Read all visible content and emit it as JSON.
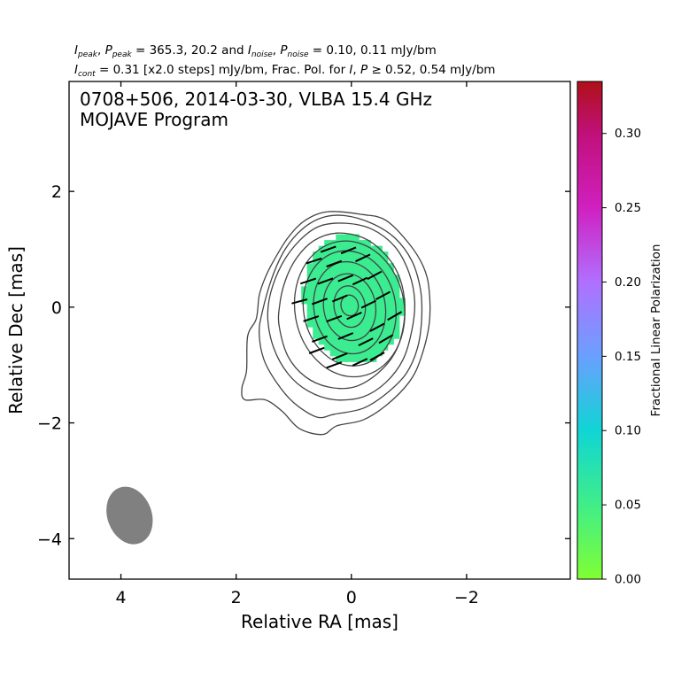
{
  "header": {
    "line1": {
      "i_peak_sym": "I",
      "i_peak_sub": "peak",
      "p_peak_sym": "P",
      "p_peak_sub": "peak",
      "peak_values": " = 365.3, 20.2 and ",
      "i_noise_sym": "I",
      "i_noise_sub": "noise",
      "p_noise_sym": "P",
      "p_noise_sub": "noise",
      "noise_values": " = 0.10, 0.11 mJy/bm"
    },
    "line2": {
      "i_cont_sym": "I",
      "i_cont_sub": "cont",
      "cont_text": " = 0.31 [x2.0 steps] mJy/bm, Frac. Pol. for ",
      "i_sym": "I",
      "p_sym": "P",
      "thresh_text": " ≥ 0.52, 0.54 mJy/bm"
    }
  },
  "chart_data": {
    "type": "heatmap",
    "title": "0708+506, 2014-03-30, VLBA 15.4 GHz",
    "subtitle": "MOJAVE Program",
    "xlabel": "Relative RA [mas]",
    "ylabel": "Relative Dec [mas]",
    "xlim": [
      4.9,
      -3.8
    ],
    "ylim": [
      -4.7,
      3.9
    ],
    "xticks": [
      4,
      2,
      0,
      -2
    ],
    "xtick_labels": [
      "4",
      "2",
      "0",
      "−2"
    ],
    "yticks": [
      2,
      0,
      -2,
      -4
    ],
    "ytick_labels": [
      "2",
      "0",
      "−2",
      "−4"
    ],
    "grid": false,
    "colorbar": {
      "label": "Fractional Linear Polarization",
      "range": [
        0.0,
        0.335
      ],
      "ticks": [
        0.0,
        0.05,
        0.1,
        0.15,
        0.2,
        0.25,
        0.3
      ],
      "tick_labels": [
        "0.00",
        "0.05",
        "0.10",
        "0.15",
        "0.20",
        "0.25",
        "0.30"
      ],
      "stops": [
        {
          "v": 0.0,
          "color": "#80ff33"
        },
        {
          "v": 0.05,
          "color": "#40ee88"
        },
        {
          "v": 0.1,
          "color": "#10d5d5"
        },
        {
          "v": 0.15,
          "color": "#6aa0ff"
        },
        {
          "v": 0.2,
          "color": "#b070ff"
        },
        {
          "v": 0.25,
          "color": "#d020c0"
        },
        {
          "v": 0.3,
          "color": "#c0107a"
        },
        {
          "v": 0.335,
          "color": "#b01018"
        }
      ]
    },
    "fractional_polarization_level": 0.055,
    "contour_color": "#444444",
    "vector_color": "#000000",
    "contours": [
      {
        "level": 1,
        "points": [
          [
            1.6,
            0.2
          ],
          [
            1.65,
            -0.2
          ],
          [
            1.8,
            -0.5
          ],
          [
            1.82,
            -1.1
          ],
          [
            1.9,
            -1.4
          ],
          [
            1.85,
            -1.6
          ],
          [
            1.5,
            -1.6
          ],
          [
            1.2,
            -1.8
          ],
          [
            0.9,
            -2.1
          ],
          [
            0.5,
            -2.2
          ],
          [
            0.25,
            -2.05
          ],
          [
            -0.2,
            -1.95
          ],
          [
            -0.6,
            -1.7
          ],
          [
            -1.0,
            -1.3
          ],
          [
            -1.2,
            -0.9
          ],
          [
            -1.35,
            -0.3
          ],
          [
            -1.35,
            0.3
          ],
          [
            -1.25,
            0.7
          ],
          [
            -1.0,
            1.1
          ],
          [
            -0.6,
            1.5
          ],
          [
            -0.2,
            1.6
          ],
          [
            0.4,
            1.65
          ],
          [
            0.8,
            1.5
          ],
          [
            1.1,
            1.2
          ],
          [
            1.35,
            0.8
          ],
          [
            1.5,
            0.5
          ]
        ]
      },
      {
        "level": 2,
        "points": [
          [
            1.55,
            -0.1
          ],
          [
            1.6,
            -0.45
          ],
          [
            1.52,
            -0.9
          ],
          [
            1.3,
            -1.3
          ],
          [
            1.0,
            -1.65
          ],
          [
            0.6,
            -1.9
          ],
          [
            0.3,
            -1.85
          ],
          [
            -0.2,
            -1.75
          ],
          [
            -0.6,
            -1.5
          ],
          [
            -0.95,
            -1.15
          ],
          [
            -1.15,
            -0.7
          ],
          [
            -1.22,
            -0.2
          ],
          [
            -1.2,
            0.3
          ],
          [
            -1.05,
            0.8
          ],
          [
            -0.75,
            1.2
          ],
          [
            -0.35,
            1.45
          ],
          [
            0.1,
            1.58
          ],
          [
            0.5,
            1.55
          ],
          [
            0.85,
            1.35
          ],
          [
            1.15,
            1.0
          ],
          [
            1.38,
            0.5
          ]
        ]
      },
      {
        "level": 4,
        "points": [
          [
            1.45,
            -0.2
          ],
          [
            1.35,
            -0.7
          ],
          [
            1.1,
            -1.15
          ],
          [
            0.75,
            -1.45
          ],
          [
            0.3,
            -1.6
          ],
          [
            -0.2,
            -1.55
          ],
          [
            -0.6,
            -1.3
          ],
          [
            -0.9,
            -0.9
          ],
          [
            -1.05,
            -0.4
          ],
          [
            -1.1,
            0.1
          ],
          [
            -1.0,
            0.6
          ],
          [
            -0.75,
            1.05
          ],
          [
            -0.35,
            1.35
          ],
          [
            0.1,
            1.45
          ],
          [
            0.55,
            1.4
          ],
          [
            0.9,
            1.15
          ],
          [
            1.2,
            0.75
          ],
          [
            1.4,
            0.25
          ]
        ]
      },
      {
        "level": 8,
        "points": [
          [
            1.25,
            -0.35
          ],
          [
            1.1,
            -0.85
          ],
          [
            0.8,
            -1.2
          ],
          [
            0.4,
            -1.38
          ],
          [
            -0.05,
            -1.38
          ],
          [
            -0.45,
            -1.15
          ],
          [
            -0.75,
            -0.8
          ],
          [
            -0.9,
            -0.35
          ],
          [
            -0.92,
            0.15
          ],
          [
            -0.8,
            0.6
          ],
          [
            -0.55,
            0.95
          ],
          [
            -0.2,
            1.2
          ],
          [
            0.25,
            1.28
          ],
          [
            0.65,
            1.15
          ],
          [
            0.95,
            0.85
          ],
          [
            1.15,
            0.45
          ],
          [
            1.25,
            0.0
          ]
        ]
      },
      {
        "level": 16,
        "p": {
          "cx": 0.03,
          "cy": -0.03,
          "rx": 0.95,
          "ry": 1.18,
          "rot": -10
        }
      },
      {
        "level": 32,
        "p": {
          "cx": 0.03,
          "cy": -0.02,
          "rx": 0.8,
          "ry": 1.0,
          "rot": -10
        }
      },
      {
        "level": 64,
        "p": {
          "cx": 0.03,
          "cy": -0.01,
          "rx": 0.62,
          "ry": 0.8,
          "rot": -10
        }
      },
      {
        "level": 128,
        "p": {
          "cx": 0.03,
          "cy": 0.0,
          "rx": 0.45,
          "ry": 0.58,
          "rot": -10
        }
      },
      {
        "level": 256,
        "p": {
          "cx": 0.03,
          "cy": 0.01,
          "rx": 0.27,
          "ry": 0.36,
          "rot": -10
        }
      },
      {
        "level": 512,
        "p": {
          "cx": 0.03,
          "cy": 0.03,
          "rx": 0.15,
          "ry": 0.18,
          "rot": -10
        }
      }
    ],
    "polarized_region": {
      "cx": 0.02,
      "cy": 0.08,
      "rx": 0.85,
      "ry": 1.12,
      "rot": -10
    },
    "evpa_vectors": [
      {
        "x": 0.4,
        "y": 1.0,
        "ang": -20
      },
      {
        "x": 0.05,
        "y": 0.98,
        "ang": -22
      },
      {
        "x": -0.2,
        "y": 0.85,
        "ang": -25
      },
      {
        "x": 0.65,
        "y": 0.8,
        "ang": -18
      },
      {
        "x": 0.3,
        "y": 0.75,
        "ang": -20
      },
      {
        "x": -0.4,
        "y": 0.55,
        "ang": -28
      },
      {
        "x": 0.75,
        "y": 0.45,
        "ang": -18
      },
      {
        "x": 0.45,
        "y": 0.45,
        "ang": -20
      },
      {
        "x": 0.1,
        "y": 0.5,
        "ang": -22
      },
      {
        "x": -0.15,
        "y": 0.45,
        "ang": -25
      },
      {
        "x": -0.55,
        "y": 0.2,
        "ang": -28
      },
      {
        "x": 0.9,
        "y": 0.1,
        "ang": -15
      },
      {
        "x": 0.55,
        "y": 0.1,
        "ang": -20
      },
      {
        "x": 0.2,
        "y": 0.15,
        "ang": -22
      },
      {
        "x": -0.3,
        "y": 0.05,
        "ang": -26
      },
      {
        "x": -0.75,
        "y": -0.15,
        "ang": -30
      },
      {
        "x": 0.7,
        "y": -0.2,
        "ang": -18
      },
      {
        "x": 0.3,
        "y": -0.2,
        "ang": -20
      },
      {
        "x": -0.05,
        "y": -0.15,
        "ang": -24
      },
      {
        "x": -0.45,
        "y": -0.35,
        "ang": -28
      },
      {
        "x": 0.55,
        "y": -0.55,
        "ang": -20
      },
      {
        "x": 0.1,
        "y": -0.5,
        "ang": -22
      },
      {
        "x": -0.25,
        "y": -0.6,
        "ang": -26
      },
      {
        "x": -0.6,
        "y": -0.55,
        "ang": -30
      },
      {
        "x": 0.6,
        "y": -0.75,
        "ang": -20
      },
      {
        "x": 0.2,
        "y": -0.85,
        "ang": -22
      },
      {
        "x": -0.15,
        "y": -0.95,
        "ang": -25
      },
      {
        "x": -0.45,
        "y": -0.85,
        "ang": -28
      },
      {
        "x": 0.3,
        "y": -1.0,
        "ang": -20
      }
    ],
    "beam": {
      "x": 3.85,
      "y": -3.6,
      "major": 1.02,
      "minor": 0.77,
      "pa": -20,
      "color": "#808080"
    }
  }
}
